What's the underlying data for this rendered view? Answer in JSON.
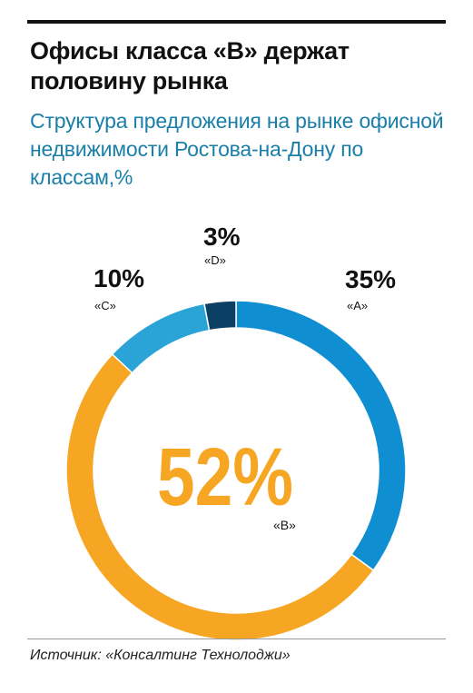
{
  "title": "Офисы класса «B» держат половину рынка",
  "subtitle": "Структура предложения на рынке офисной недвижимости Ростова-на-Дону по классам,%",
  "source": "Источник: «Консалтинг Технолоджи»",
  "chart_data": {
    "type": "pie",
    "variant": "donut",
    "unit": "%",
    "slices": [
      {
        "category": "«A»",
        "value": 35,
        "label": "35%",
        "color": "#0f8fd2"
      },
      {
        "category": "«B»",
        "value": 52,
        "label": "52%",
        "color": "#f6a623"
      },
      {
        "category": "«C»",
        "value": 10,
        "label": "10%",
        "color": "#2aa3d6"
      },
      {
        "category": "«D»",
        "value": 3,
        "label": "3%",
        "color": "#0b3f63"
      }
    ]
  }
}
